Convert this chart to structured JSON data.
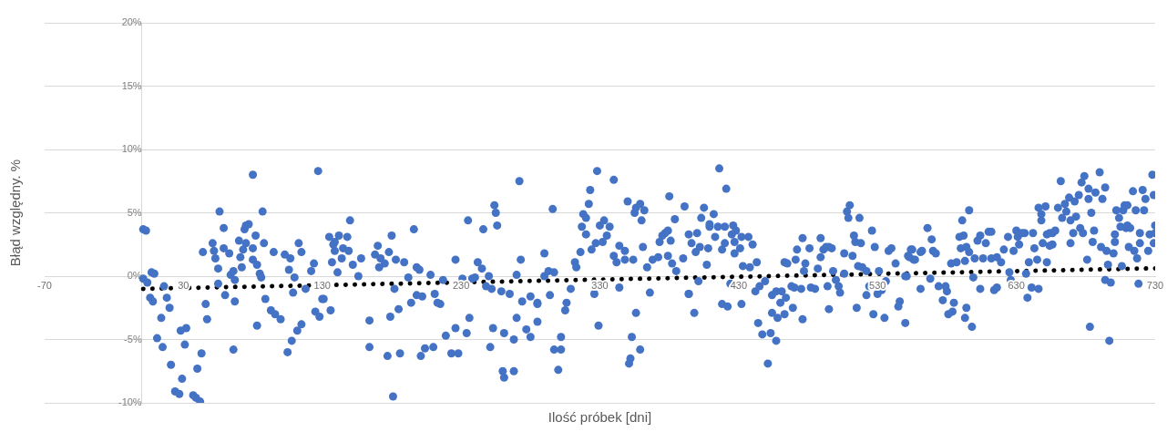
{
  "chart_data": {
    "type": "scatter",
    "xlabel": "Ilość próbek [dni]",
    "ylabel": "Błąd względny. %",
    "xlim": [
      -70,
      730
    ],
    "xticks": [
      -70,
      30,
      130,
      230,
      330,
      430,
      530,
      630,
      730
    ],
    "ylim": [
      -10,
      20
    ],
    "yticks": [
      {
        "value": -10,
        "label": "-10%"
      },
      {
        "value": -5,
        "label": "-5%"
      },
      {
        "value": 0,
        "label": "0%"
      },
      {
        "value": 5,
        "label": "5%"
      },
      {
        "value": 10,
        "label": "10%"
      },
      {
        "value": 15,
        "label": "15%"
      },
      {
        "value": 20,
        "label": "20%"
      }
    ],
    "grid": "y",
    "series": [
      {
        "color": "#4472c4",
        "marker": "circle",
        "x": [
          1,
          3,
          7,
          9,
          1,
          4,
          6,
          8,
          14,
          16,
          18,
          20,
          11,
          15,
          21,
          24,
          27,
          28,
          29,
          31,
          32,
          37,
          39,
          40,
          42,
          43,
          44,
          46,
          47,
          51,
          52,
          53,
          55,
          56,
          59,
          59,
          55,
          60,
          63,
          64,
          66,
          66,
          67,
          67,
          70,
          71,
          72,
          73,
          74,
          75,
          77,
          75,
          80,
          80,
          80,
          82,
          83,
          85,
          86,
          87,
          88,
          89,
          83,
          93,
          95,
          96,
          100,
          103,
          106,
          107,
          109,
          110,
          113,
          115,
          112,
          118,
          124,
          127,
          122,
          135,
          138,
          139,
          136,
          130,
          105,
          108,
          115,
          125,
          128,
          131,
          139,
          142,
          150,
          148,
          149,
          145,
          137,
          141,
          144,
          152,
          158,
          156,
          168,
          170,
          172,
          171,
          175,
          178,
          180,
          183,
          182,
          189,
          192,
          196,
          198,
          200,
          198,
          202,
          208,
          211,
          215,
          217,
          226,
          231,
          235,
          238,
          240,
          242,
          245,
          246,
          250,
          248,
          254,
          255,
          256,
          252,
          259,
          265,
          272,
          273,
          270,
          274,
          280,
          285,
          290,
          293,
          290,
          296,
          297,
          294,
          309,
          312,
          313,
          316,
          317,
          318,
          320,
          320,
          322,
          323,
          327,
          328,
          324,
          330,
          332,
          333,
          335,
          337,
          340,
          340,
          342,
          344,
          344,
          326,
          350,
          164,
          164,
          177,
          181,
          186,
          179,
          185,
          194,
          201,
          204,
          210,
          213,
          219,
          223,
          228,
          226,
          234,
          236,
          251,
          253,
          260,
          261,
          268,
          261,
          268,
          270,
          277,
          280,
          285,
          285,
          297,
          302,
          300,
          302,
          305,
          306,
          329,
          351,
          352,
          353,
          359,
          356,
          398,
          394,
          418,
          422,
          432,
          444,
          447,
          451,
          453,
          457,
          454,
          458,
          463,
          476,
          469,
          355,
          356,
          359,
          362,
          360,
          361,
          354,
          348,
          348,
          364,
          366,
          368,
          372,
          373,
          375,
          377,
          379,
          380,
          379,
          381,
          382,
          385,
          384,
          391,
          390,
          394,
          394,
          396,
          400,
          399,
          402,
          401,
          405,
          403,
          408,
          407,
          409,
          412,
          409,
          413,
          415,
          416,
          420,
          421,
          420,
          418,
          425,
          426,
          427,
          428,
          427,
          431,
          432,
          437,
          440,
          433,
          438,
          443,
          424,
          442,
          445,
          449,
          454,
          457,
          460,
          463,
          465,
          461,
          464,
          468,
          470,
          471,
          472,
          476,
          475,
          478,
          477,
          481,
          482,
          485,
          487,
          489,
          489,
          491,
          493,
          495,
          494,
          497,
          498,
          500,
          502,
          503,
          506,
          506,
          508,
          510,
          509,
          512,
          513,
          514,
          517,
          518,
          516,
          519,
          522,
          524,
          522,
          526,
          528,
          530,
          533,
          531,
          536,
          538,
          540,
          543,
          546,
          550,
          552,
          554,
          556,
          495,
          515,
          527,
          535,
          550,
          545,
          551,
          553,
          555,
          557,
          561,
          562,
          566,
          569,
          570,
          572,
          568,
          574,
          561,
          577,
          579,
          580,
          583,
          585,
          584,
          587,
          589,
          590,
          591,
          592,
          593,
          594,
          596,
          596,
          599,
          600,
          602,
          604,
          606,
          604,
          608,
          610,
          612,
          612,
          614,
          616,
          616,
          619,
          621,
          624,
          625,
          626,
          628,
          630,
          631,
          632,
          634,
          636,
          637,
          638,
          639,
          642,
          643,
          645,
          641,
          646,
          646,
          648,
          651,
          648,
          649,
          652,
          652,
          654,
          656,
          658,
          656,
          654,
          660,
          662,
          663,
          665,
          666,
          668,
          669,
          669,
          671,
          672,
          673,
          675,
          676,
          677,
          679,
          678,
          681,
          682,
          682,
          684,
          685,
          686,
          687,
          690,
          691,
          692,
          694,
          694,
          695,
          696,
          698,
          700,
          701,
          701,
          702,
          704,
          705,
          706,
          707,
          708,
          710,
          709,
          710,
          712,
          711,
          714,
          716,
          717,
          715,
          718,
          719,
          721,
          722,
          723,
          719,
          725,
          726,
          728,
          729,
          729,
          730,
          730,
          593,
          598,
          683,
          697,
          581,
          594
        ],
        "values": [
          3.7,
          3.6,
          0.3,
          0.2,
          -0.2,
          -0.5,
          -1.7,
          -2,
          -3.3,
          -0.8,
          -1.7,
          -2.5,
          -4.9,
          -5.6,
          -7,
          -9.1,
          -9.3,
          -4.3,
          -8.1,
          -5.4,
          -4.1,
          -9.4,
          -9.6,
          -7.3,
          -9.9,
          -6.1,
          1.9,
          -2.2,
          -3.4,
          2.6,
          2,
          1.4,
          0.6,
          5.1,
          3.8,
          2.2,
          -0.6,
          -1.5,
          1.8,
          0.1,
          0.4,
          -5.8,
          -0.3,
          -2,
          2.8,
          1.5,
          0.7,
          2.1,
          3.7,
          4,
          4.1,
          2.6,
          8,
          1.3,
          2.2,
          3.2,
          0.9,
          0.2,
          -0.1,
          5.1,
          2.6,
          -1.8,
          -3.9,
          -2.7,
          1.9,
          -3,
          -3.4,
          1.7,
          0.5,
          1.4,
          -1.3,
          -0.1,
          2.6,
          1.9,
          -4.3,
          -1,
          1,
          8.3,
          0.4,
          3.1,
          2.5,
          2,
          -2.7,
          -1.8,
          -6,
          -5.1,
          -3.8,
          -2.8,
          -3.2,
          -1.8,
          2.7,
          3.2,
          4.4,
          3.1,
          2,
          2.2,
          1.1,
          0.3,
          1.4,
          0.9,
          1.4,
          0,
          1.7,
          2.4,
          1.4,
          0.7,
          1,
          1.9,
          3.2,
          1.3,
          -1,
          1.1,
          -0.1,
          3.7,
          0.7,
          0.5,
          -1.5,
          -1.6,
          0.1,
          -1.4,
          -2.2,
          -0.3,
          1.3,
          -0.2,
          4.4,
          -0.2,
          -0.1,
          1.1,
          0.6,
          3.7,
          0,
          -0.8,
          5.6,
          5,
          4,
          -1,
          -1.2,
          -1.4,
          7.5,
          1.3,
          0.1,
          -2,
          -1.6,
          -2.1,
          1.8,
          0.4,
          0,
          5.3,
          0.3,
          -1.5,
          -1,
          1.1,
          0.7,
          1.9,
          3.9,
          4.9,
          4.6,
          3.3,
          5.7,
          6.8,
          2.6,
          8.3,
          2.1,
          4,
          2.7,
          4.4,
          3.2,
          3.9,
          7.6,
          1.6,
          1.1,
          2.4,
          -0.9,
          -1.4,
          5.9,
          -3.5,
          -5.6,
          -6.3,
          -9.5,
          -6.1,
          -3.2,
          -2.6,
          -2.1,
          -6.3,
          -5.7,
          -5.6,
          -2.1,
          -4.7,
          -6.1,
          -6.1,
          -4.1,
          -4.5,
          -3.3,
          -5.6,
          -4.1,
          -7.5,
          -8,
          -7.5,
          -4.5,
          -5,
          -3.3,
          -4.2,
          -4.8,
          -3.6,
          -2.2,
          -5.8,
          -5.8,
          -7.4,
          -4.8,
          -2.7,
          -2.1,
          -3.9,
          -6.9,
          -6.5,
          -4.8,
          -5.8,
          -2.9,
          -2.9,
          -1.4,
          -2.2,
          -2.4,
          -2.2,
          -3.7,
          -4.6,
          -6.9,
          -4.5,
          -5.1,
          -2.9,
          -3.3,
          -3,
          -3.4,
          -2.5,
          5,
          5.4,
          5.7,
          5.2,
          4.4,
          2.3,
          1.3,
          2,
          1.3,
          0.7,
          -1.3,
          1.3,
          1.5,
          2.7,
          3.2,
          3.4,
          3.6,
          6.3,
          1.6,
          2.8,
          1,
          0.4,
          4.5,
          5.5,
          1.4,
          -1.4,
          3.3,
          2.6,
          3.4,
          1.9,
          2.3,
          -0.4,
          5.4,
          4.6,
          2.2,
          0.9,
          4.1,
          4.9,
          3.9,
          3.1,
          3.9,
          8.5,
          3.9,
          6.9,
          2.6,
          2.1,
          3.3,
          4,
          2.7,
          3.6,
          1.8,
          2.2,
          3.1,
          3.1,
          2.5,
          0.8,
          0.7,
          1.1,
          -0.6,
          -1.2,
          -0.8,
          -0.4,
          -1.5,
          -1.2,
          -2.1,
          1.1,
          1,
          -1.2,
          -1.7,
          -0.8,
          -0.9,
          1.3,
          2.1,
          3,
          -1,
          1,
          0.4,
          2.2,
          -0.9,
          -1,
          0.6,
          1.5,
          3,
          2.1,
          2.3,
          2.3,
          -0.8,
          2.2,
          0.4,
          -0.3,
          -0.8,
          -1.3,
          0.2,
          1.8,
          5.1,
          5.6,
          4.6,
          1.6,
          3.2,
          2.7,
          4.6,
          2.6,
          0.8,
          0.7,
          0.4,
          -0.8,
          -1.5,
          3.6,
          2.3,
          -1.4,
          -1.1,
          0.4,
          -0.4,
          2,
          2.2,
          1,
          -2,
          0,
          1.6,
          2.1,
          1.3,
          -2.6,
          -2.5,
          -3,
          -3.3,
          -3.7,
          -2.4,
          0,
          1.5,
          2.1,
          1.3,
          1.9,
          2,
          3.8,
          2.9,
          2,
          1.8,
          -0.2,
          -0.8,
          -1,
          -1.9,
          -0.8,
          -1.2,
          1,
          -2.1,
          -2.8,
          1.1,
          3.1,
          2.2,
          4.4,
          3.2,
          1.2,
          2.3,
          5.2,
          1.9,
          -0.1,
          1.4,
          2.8,
          3.2,
          1.4,
          -1,
          2.6,
          3.5,
          3.5,
          1.4,
          -1.1,
          -0.9,
          1.5,
          1.1,
          2.1,
          3.1,
          0.3,
          -0.3,
          2,
          3.6,
          3.1,
          2.5,
          3.4,
          3.4,
          0.2,
          -1.7,
          1.1,
          3.4,
          2.2,
          1.3,
          -0.9,
          -1,
          5.4,
          4.9,
          5.5,
          4.4,
          2.6,
          1.1,
          3.3,
          3.4,
          3.4,
          3.6,
          2.5,
          2.4,
          5.4,
          7.5,
          4.6,
          5.7,
          5.1,
          6.2,
          4.4,
          2.6,
          3.4,
          5.9,
          4.7,
          6.4,
          3.8,
          7.4,
          7.9,
          3.4,
          1.3,
          6.1,
          6.9,
          5,
          2.7,
          3.6,
          6.6,
          8.2,
          2.3,
          6.1,
          7,
          -0.3,
          2,
          0.9,
          -0.5,
          1.8,
          2.7,
          3.3,
          5.2,
          4.6,
          3.9,
          0.8,
          5.2,
          5.6,
          5.6,
          3.8,
          4,
          3.8,
          2.3,
          6.7,
          5.2,
          1.4,
          2,
          -0.6,
          3.4,
          6.8,
          5.2,
          6.1,
          2.6,
          2,
          3.3,
          8,
          2.6,
          6.4,
          4,
          3.4,
          -3.3,
          -4,
          -4,
          -5.1,
          -3,
          -2.5
        ]
      },
      {
        "type": "line",
        "color": "#000000",
        "line_style": "dotted",
        "x": [
          1,
          730
        ],
        "values": [
          -1.0,
          0.62
        ]
      }
    ]
  }
}
